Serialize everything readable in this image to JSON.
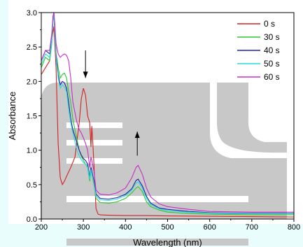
{
  "chart_data": {
    "type": "line",
    "title": "",
    "xlabel": "Wavelength (nm)",
    "ylabel": "Absorbance",
    "xlim": [
      200,
      800
    ],
    "ylim": [
      0.0,
      3.0
    ],
    "x_ticks": [
      "200",
      "300",
      "400",
      "500",
      "600",
      "700",
      "800"
    ],
    "y_ticks": [
      "0.0",
      "0.5",
      "1.0",
      "1.5",
      "2.0",
      "2.5",
      "3.0"
    ],
    "grid": false,
    "legend": "top-right",
    "annotations": [
      {
        "type": "arrow",
        "direction": "down",
        "x": 305,
        "y_from": 2.45,
        "y_to": 2.05
      },
      {
        "type": "arrow",
        "direction": "up",
        "x": 428,
        "y_from": 0.92,
        "y_to": 1.27
      }
    ],
    "series": [
      {
        "name": "0 s",
        "color": "#d62020",
        "points": [
          [
            200,
            2.1
          ],
          [
            205,
            2.15
          ],
          [
            210,
            2.2
          ],
          [
            215,
            2.25
          ],
          [
            220,
            2.3
          ],
          [
            225,
            2.6
          ],
          [
            230,
            2.8
          ],
          [
            235,
            2.2
          ],
          [
            240,
            1.1
          ],
          [
            245,
            0.6
          ],
          [
            250,
            0.5
          ],
          [
            255,
            0.55
          ],
          [
            260,
            0.62
          ],
          [
            270,
            0.75
          ],
          [
            280,
            0.9
          ],
          [
            290,
            1.4
          ],
          [
            295,
            1.75
          ],
          [
            300,
            1.9
          ],
          [
            305,
            1.8
          ],
          [
            310,
            1.5
          ],
          [
            315,
            1.4
          ],
          [
            318,
            1.05
          ],
          [
            320,
            1.35
          ],
          [
            322,
            1.15
          ],
          [
            325,
            0.8
          ],
          [
            330,
            0.15
          ],
          [
            335,
            0.07
          ],
          [
            340,
            0.06
          ],
          [
            360,
            0.055
          ],
          [
            400,
            0.05
          ],
          [
            450,
            0.05
          ],
          [
            500,
            0.045
          ],
          [
            600,
            0.04
          ],
          [
            700,
            0.035
          ],
          [
            800,
            0.03
          ]
        ]
      },
      {
        "name": "30 s",
        "color": "#2ec82e",
        "points": [
          [
            200,
            2.2
          ],
          [
            210,
            2.35
          ],
          [
            220,
            2.3
          ],
          [
            225,
            2.55
          ],
          [
            228,
            2.9
          ],
          [
            230,
            2.95
          ],
          [
            232,
            2.7
          ],
          [
            235,
            2.4
          ],
          [
            240,
            2.2
          ],
          [
            245,
            2.05
          ],
          [
            250,
            2.1
          ],
          [
            255,
            2.12
          ],
          [
            260,
            2.05
          ],
          [
            265,
            1.85
          ],
          [
            270,
            1.7
          ],
          [
            275,
            1.45
          ],
          [
            280,
            1.3
          ],
          [
            285,
            1.15
          ],
          [
            290,
            1.0
          ],
          [
            295,
            0.92
          ],
          [
            300,
            0.85
          ],
          [
            305,
            0.8
          ],
          [
            310,
            0.75
          ],
          [
            315,
            0.55
          ],
          [
            318,
            0.72
          ],
          [
            320,
            0.65
          ],
          [
            325,
            0.5
          ],
          [
            330,
            0.3
          ],
          [
            340,
            0.24
          ],
          [
            360,
            0.23
          ],
          [
            380,
            0.25
          ],
          [
            400,
            0.3
          ],
          [
            415,
            0.38
          ],
          [
            425,
            0.45
          ],
          [
            430,
            0.47
          ],
          [
            440,
            0.4
          ],
          [
            450,
            0.25
          ],
          [
            460,
            0.18
          ],
          [
            480,
            0.13
          ],
          [
            500,
            0.1
          ],
          [
            550,
            0.08
          ],
          [
            600,
            0.07
          ],
          [
            700,
            0.06
          ],
          [
            800,
            0.06
          ]
        ]
      },
      {
        "name": "40 s",
        "color": "#1e1ea8",
        "points": [
          [
            200,
            2.3
          ],
          [
            210,
            2.45
          ],
          [
            220,
            2.4
          ],
          [
            225,
            2.6
          ],
          [
            228,
            2.95
          ],
          [
            230,
            3.0
          ],
          [
            232,
            2.75
          ],
          [
            235,
            2.4
          ],
          [
            240,
            2.1
          ],
          [
            245,
            1.95
          ],
          [
            250,
            2.0
          ],
          [
            255,
            1.98
          ],
          [
            260,
            1.9
          ],
          [
            265,
            1.7
          ],
          [
            270,
            1.45
          ],
          [
            275,
            1.3
          ],
          [
            280,
            1.2
          ],
          [
            285,
            1.1
          ],
          [
            290,
            1.0
          ],
          [
            295,
            0.93
          ],
          [
            300,
            0.88
          ],
          [
            305,
            0.85
          ],
          [
            310,
            0.8
          ],
          [
            315,
            0.6
          ],
          [
            318,
            0.75
          ],
          [
            320,
            0.7
          ],
          [
            325,
            0.55
          ],
          [
            330,
            0.36
          ],
          [
            340,
            0.3
          ],
          [
            360,
            0.29
          ],
          [
            380,
            0.31
          ],
          [
            400,
            0.36
          ],
          [
            415,
            0.44
          ],
          [
            425,
            0.56
          ],
          [
            430,
            0.58
          ],
          [
            440,
            0.48
          ],
          [
            450,
            0.33
          ],
          [
            460,
            0.23
          ],
          [
            480,
            0.16
          ],
          [
            500,
            0.14
          ],
          [
            550,
            0.11
          ],
          [
            600,
            0.09
          ],
          [
            700,
            0.08
          ],
          [
            800,
            0.08
          ]
        ]
      },
      {
        "name": "50 s",
        "color": "#26dcdc",
        "points": [
          [
            200,
            2.25
          ],
          [
            210,
            2.4
          ],
          [
            220,
            2.35
          ],
          [
            225,
            2.58
          ],
          [
            228,
            2.92
          ],
          [
            230,
            2.98
          ],
          [
            232,
            2.72
          ],
          [
            235,
            2.35
          ],
          [
            240,
            2.05
          ],
          [
            245,
            1.9
          ],
          [
            250,
            1.95
          ],
          [
            255,
            1.92
          ],
          [
            260,
            1.85
          ],
          [
            265,
            1.6
          ],
          [
            270,
            1.4
          ],
          [
            275,
            1.25
          ],
          [
            280,
            1.12
          ],
          [
            285,
            1.0
          ],
          [
            290,
            0.92
          ],
          [
            295,
            0.86
          ],
          [
            300,
            0.82
          ],
          [
            305,
            0.8
          ],
          [
            310,
            0.76
          ],
          [
            315,
            0.58
          ],
          [
            318,
            0.72
          ],
          [
            320,
            0.66
          ],
          [
            325,
            0.52
          ],
          [
            330,
            0.33
          ],
          [
            340,
            0.28
          ],
          [
            360,
            0.27
          ],
          [
            380,
            0.29
          ],
          [
            400,
            0.34
          ],
          [
            415,
            0.42
          ],
          [
            425,
            0.52
          ],
          [
            430,
            0.54
          ],
          [
            440,
            0.45
          ],
          [
            450,
            0.3
          ],
          [
            460,
            0.21
          ],
          [
            480,
            0.15
          ],
          [
            500,
            0.12
          ],
          [
            550,
            0.1
          ],
          [
            600,
            0.085
          ],
          [
            700,
            0.075
          ],
          [
            800,
            0.075
          ]
        ]
      },
      {
        "name": "60 s",
        "color": "#c82ec8",
        "points": [
          [
            200,
            2.3
          ],
          [
            210,
            2.45
          ],
          [
            220,
            2.45
          ],
          [
            225,
            2.7
          ],
          [
            228,
            2.95
          ],
          [
            230,
            3.0
          ],
          [
            232,
            2.85
          ],
          [
            235,
            2.55
          ],
          [
            240,
            2.4
          ],
          [
            245,
            2.35
          ],
          [
            250,
            2.38
          ],
          [
            255,
            2.4
          ],
          [
            260,
            2.38
          ],
          [
            265,
            2.3
          ],
          [
            270,
            2.05
          ],
          [
            275,
            1.7
          ],
          [
            280,
            1.55
          ],
          [
            285,
            1.4
          ],
          [
            290,
            1.3
          ],
          [
            295,
            1.25
          ],
          [
            300,
            1.18
          ],
          [
            305,
            1.1
          ],
          [
            310,
            1.0
          ],
          [
            315,
            0.75
          ],
          [
            318,
            0.9
          ],
          [
            320,
            0.85
          ],
          [
            325,
            0.7
          ],
          [
            330,
            0.42
          ],
          [
            340,
            0.36
          ],
          [
            360,
            0.35
          ],
          [
            380,
            0.38
          ],
          [
            400,
            0.45
          ],
          [
            415,
            0.6
          ],
          [
            425,
            0.75
          ],
          [
            430,
            0.78
          ],
          [
            440,
            0.65
          ],
          [
            450,
            0.45
          ],
          [
            460,
            0.32
          ],
          [
            480,
            0.22
          ],
          [
            500,
            0.18
          ],
          [
            550,
            0.14
          ],
          [
            600,
            0.11
          ],
          [
            700,
            0.1
          ],
          [
            800,
            0.1
          ]
        ]
      }
    ]
  }
}
